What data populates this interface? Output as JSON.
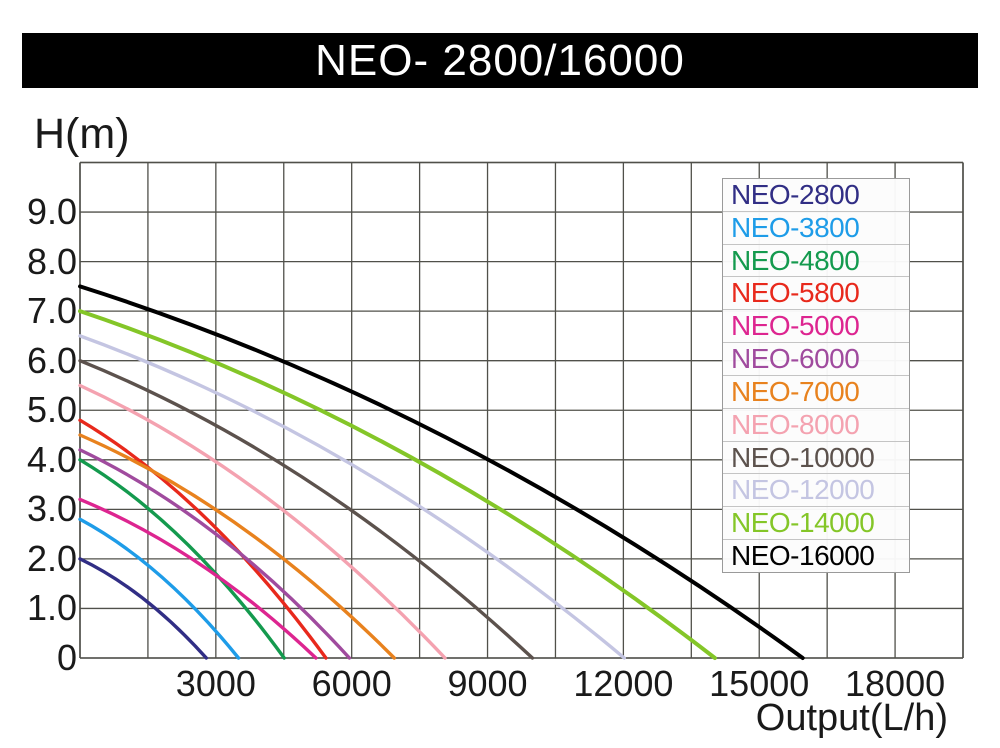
{
  "window": {
    "title": "NEO- 2800/16000"
  },
  "chart_data": {
    "type": "line",
    "title": "NEO- 2800/16000",
    "xlabel": "Output(L/h)",
    "ylabel": "H(m)",
    "xlim": [
      0,
      19500
    ],
    "ylim": [
      0,
      10
    ],
    "grid": true,
    "x_gridline_step": 1500,
    "y_gridline_step": 1,
    "x_ticks": [
      {
        "value": 3000,
        "label": "3000"
      },
      {
        "value": 6000,
        "label": "6000"
      },
      {
        "value": 9000,
        "label": "9000"
      },
      {
        "value": 12000,
        "label": "12000"
      },
      {
        "value": 15000,
        "label": "15000"
      },
      {
        "value": 18000,
        "label": "18000"
      }
    ],
    "y_ticks": [
      {
        "value": 9,
        "label": "9.0"
      },
      {
        "value": 8,
        "label": "8.0"
      },
      {
        "value": 7,
        "label": "7.0"
      },
      {
        "value": 6,
        "label": "6.0"
      },
      {
        "value": 5,
        "label": "5.0"
      },
      {
        "value": 4,
        "label": "4.0"
      },
      {
        "value": 3,
        "label": "3.0"
      },
      {
        "value": 2,
        "label": "2.0"
      },
      {
        "value": 1,
        "label": "1.0"
      },
      {
        "value": 0,
        "label": "0"
      }
    ],
    "legend_position": "top-right",
    "curve_model": "head falls from max_head_m at zero flow to 0 m at max_flow_lh, concave-down pump curve",
    "series": [
      {
        "name": "NEO-2800",
        "color": "#312e85",
        "max_head_m": 2.0,
        "max_flow_lh": 2790
      },
      {
        "name": "NEO-3800",
        "color": "#1e9ce8",
        "max_head_m": 2.8,
        "max_flow_lh": 3500
      },
      {
        "name": "NEO-4800",
        "color": "#149a4e",
        "max_head_m": 4.0,
        "max_flow_lh": 4510
      },
      {
        "name": "NEO-5800",
        "color": "#e8291c",
        "max_head_m": 4.8,
        "max_flow_lh": 5430
      },
      {
        "name": "NEO-5000",
        "color": "#dd2590",
        "max_head_m": 3.2,
        "max_flow_lh": 5210
      },
      {
        "name": "NEO-6000",
        "color": "#a04b9e",
        "max_head_m": 4.2,
        "max_flow_lh": 5950
      },
      {
        "name": "NEO-7000",
        "color": "#e8821e",
        "max_head_m": 4.5,
        "max_flow_lh": 6940
      },
      {
        "name": "NEO-8000",
        "color": "#f4a2b0",
        "max_head_m": 5.5,
        "max_flow_lh": 8060
      },
      {
        "name": "NEO-10000",
        "color": "#5c524d",
        "max_head_m": 6.0,
        "max_flow_lh": 9990
      },
      {
        "name": "NEO-12000",
        "color": "#c4c5e2",
        "max_head_m": 6.5,
        "max_flow_lh": 12020
      },
      {
        "name": "NEO-14000",
        "color": "#84c628",
        "max_head_m": 7.0,
        "max_flow_lh": 14020
      },
      {
        "name": "NEO-16000",
        "color": "#000000",
        "max_head_m": 7.5,
        "max_flow_lh": 15960
      }
    ],
    "layout_colors": {
      "grid": "#50504a",
      "title_bg": "#000000",
      "title_fg": "#ffffff",
      "legend_bg": "#fcfcfc",
      "legend_border": "#9a9a9a"
    }
  }
}
